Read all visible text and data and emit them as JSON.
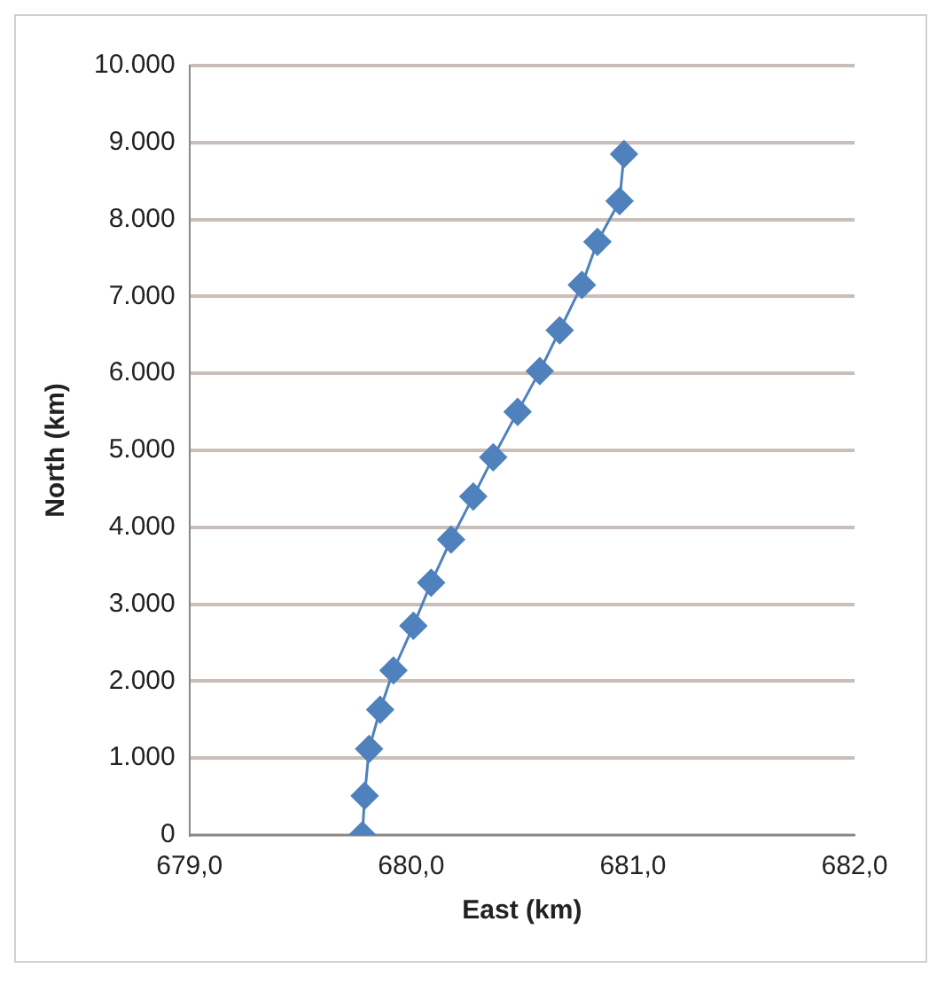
{
  "chart_data": {
    "type": "line",
    "xlabel": "East (km)",
    "ylabel": "North (km)",
    "x": [
      679.78,
      679.79,
      679.81,
      679.86,
      679.92,
      680.01,
      680.09,
      680.18,
      680.28,
      680.37,
      680.48,
      680.58,
      680.67,
      680.77,
      680.84,
      680.94,
      680.96
    ],
    "series": [
      {
        "color": "#4f81bd",
        "values": [
          0,
          510,
          1120,
          1630,
          2140,
          2720,
          3280,
          3840,
          4400,
          4910,
          5500,
          6030,
          6560,
          7150,
          7710,
          8240,
          8850
        ]
      }
    ],
    "xlim": [
      679,
      682
    ],
    "xticks": [
      {
        "value": 679,
        "label": "679,0"
      },
      {
        "value": 680,
        "label": "680,0"
      },
      {
        "value": 681,
        "label": "681,0"
      },
      {
        "value": 682,
        "label": "682,0"
      }
    ],
    "ylim": [
      0,
      10000
    ],
    "yticks": [
      0,
      {
        "value": 1000,
        "label": "1.000"
      },
      {
        "value": 2000,
        "label": "2.000"
      },
      {
        "value": 3000,
        "label": "3.000"
      },
      {
        "value": 4000,
        "label": "4.000"
      },
      {
        "value": 5000,
        "label": "5.000"
      },
      {
        "value": 6000,
        "label": "6.000"
      },
      {
        "value": 7000,
        "label": "7.000"
      },
      {
        "value": 8000,
        "label": "8.000"
      },
      {
        "value": 9000,
        "label": "9.000"
      },
      {
        "value": 10000,
        "label": "10.000"
      }
    ],
    "grid": "y",
    "marker": "diamond",
    "line_style": "solid"
  }
}
